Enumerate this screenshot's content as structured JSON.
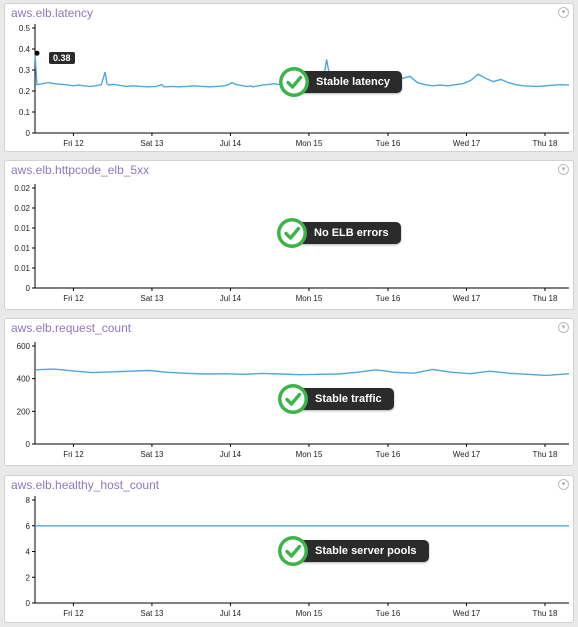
{
  "colors": {
    "line": "#4fa7dc",
    "title": "#8f78b8",
    "check_green": "#3bb54a",
    "badge_bg": "#2b2b2b"
  },
  "icons": {
    "menu": "chevron-down-circle-icon",
    "status": "check-circle-icon"
  },
  "x_ticks": [
    "Fri 12",
    "Sat 13",
    "Jul 14",
    "Mon 15",
    "Tue 16",
    "Wed 17",
    "Thu 18"
  ],
  "panels": [
    {
      "title": "aws.elb.latency",
      "annotation": "Stable latency",
      "tooltip": "0.38"
    },
    {
      "title": "aws.elb.httpcode_elb_5xx",
      "annotation": "No ELB errors"
    },
    {
      "title": "aws.elb.request_count",
      "annotation": "Stable traffic"
    },
    {
      "title": "aws.elb.healthy_host_count",
      "annotation": "Stable server pools"
    }
  ],
  "chart_data": [
    {
      "type": "line",
      "title": "aws.elb.latency",
      "ylim": [
        0,
        0.5
      ],
      "y_ticks": [
        "0.5",
        "0.4",
        "0.3",
        "0.2",
        "0.1",
        "0"
      ],
      "x_ticks": [
        "Fri 12",
        "Sat 13",
        "Jul 14",
        "Mon 15",
        "Tue 16",
        "Wed 17",
        "Thu 18"
      ],
      "x": [
        0,
        0.05,
        0.2,
        0.35,
        0.5,
        0.7,
        0.9,
        1.0,
        1.15,
        1.3,
        1.45,
        1.6,
        1.75,
        1.85,
        1.9,
        1.95,
        2.05,
        2.2,
        2.4,
        2.6,
        2.8,
        3.0,
        3.2,
        3.35,
        3.4,
        3.45,
        3.6,
        3.8,
        4.0,
        4.2,
        4.4,
        4.6,
        4.8,
        5.0,
        5.1,
        5.2,
        5.3,
        5.4,
        5.5,
        5.6,
        5.7,
        5.75,
        5.8,
        5.9,
        6.0,
        6.1,
        6.2,
        6.3,
        6.4,
        6.6,
        6.8,
        7.0,
        7.2,
        7.4,
        7.6,
        7.7,
        7.8,
        7.9,
        8.0,
        8.1,
        8.3,
        8.5,
        8.7,
        8.9,
        9.1,
        9.3,
        9.5,
        9.7,
        9.9,
        10.1,
        10.3,
        10.5,
        10.7,
        10.9,
        11.1,
        11.3,
        11.5,
        11.7,
        11.9,
        12.1,
        12.3,
        12.5,
        12.7,
        12.9,
        13.1,
        13.3,
        13.5,
        13.7,
        13.9,
        14.1
      ],
      "series": [
        {
          "values": [
            0.38,
            0.23,
            0.235,
            0.24,
            0.235,
            0.232,
            0.228,
            0.225,
            0.228,
            0.225,
            0.222,
            0.225,
            0.23,
            0.29,
            0.235,
            0.228,
            0.232,
            0.228,
            0.222,
            0.225,
            0.222,
            0.22,
            0.222,
            0.23,
            0.22,
            0.22,
            0.222,
            0.22,
            0.222,
            0.225,
            0.222,
            0.22,
            0.222,
            0.225,
            0.23,
            0.24,
            0.232,
            0.228,
            0.225,
            0.222,
            0.225,
            0.22,
            0.222,
            0.225,
            0.228,
            0.23,
            0.232,
            0.235,
            0.232,
            0.228,
            0.225,
            0.222,
            0.225,
            0.228,
            0.232,
            0.35,
            0.25,
            0.235,
            0.238,
            0.232,
            0.228,
            0.23,
            0.235,
            0.24,
            0.24,
            0.26,
            0.27,
            0.26,
            0.27,
            0.24,
            0.23,
            0.225,
            0.228,
            0.225,
            0.23,
            0.235,
            0.25,
            0.28,
            0.26,
            0.245,
            0.255,
            0.24,
            0.23,
            0.225,
            0.223,
            0.222,
            0.225,
            0.228,
            0.23,
            0.228
          ]
        }
      ]
    },
    {
      "type": "line",
      "title": "aws.elb.httpcode_elb_5xx",
      "ylim": [
        0,
        0.025
      ],
      "y_ticks": [
        "0.02",
        "0.02",
        "0.01",
        "0.01",
        "0.01",
        "0"
      ],
      "x_ticks": [
        "Fri 12",
        "Sat 13",
        "Jul 14",
        "Mon 15",
        "Tue 16",
        "Wed 17",
        "Thu 18"
      ],
      "series": []
    },
    {
      "type": "line",
      "title": "aws.elb.request_count",
      "ylim": [
        0,
        700
      ],
      "y_ticks": [
        "600",
        "400",
        "200",
        "0"
      ],
      "x_ticks": [
        "Fri 12",
        "Sat 13",
        "Jul 14",
        "Mon 15",
        "Tue 16",
        "Wed 17",
        "Thu 18"
      ],
      "x": [
        0,
        0.5,
        1.0,
        1.5,
        2.0,
        2.5,
        3.0,
        3.5,
        4.0,
        4.5,
        5.0,
        5.5,
        6.0,
        6.5,
        7.0,
        7.5,
        8.0,
        8.5,
        9.0,
        9.5,
        10.0,
        10.5,
        11.0,
        11.5,
        12.0,
        12.5,
        13.0,
        13.5,
        14.1
      ],
      "series": [
        {
          "values": [
            530,
            535,
            522,
            510,
            515,
            520,
            525,
            512,
            505,
            500,
            502,
            498,
            504,
            500,
            495,
            498,
            500,
            512,
            530,
            512,
            506,
            532,
            512,
            502,
            520,
            506,
            498,
            490,
            502
          ]
        }
      ]
    },
    {
      "type": "line",
      "title": "aws.elb.healthy_host_count",
      "ylim": [
        0,
        8
      ],
      "y_ticks": [
        "8",
        "6",
        "4",
        "2",
        "0"
      ],
      "x_ticks": [
        "Fri 12",
        "Sat 13",
        "Jul 14",
        "Mon 15",
        "Tue 16",
        "Wed 17",
        "Thu 18"
      ],
      "x": [
        0,
        14.1
      ],
      "series": [
        {
          "values": [
            6,
            6
          ]
        }
      ]
    }
  ]
}
